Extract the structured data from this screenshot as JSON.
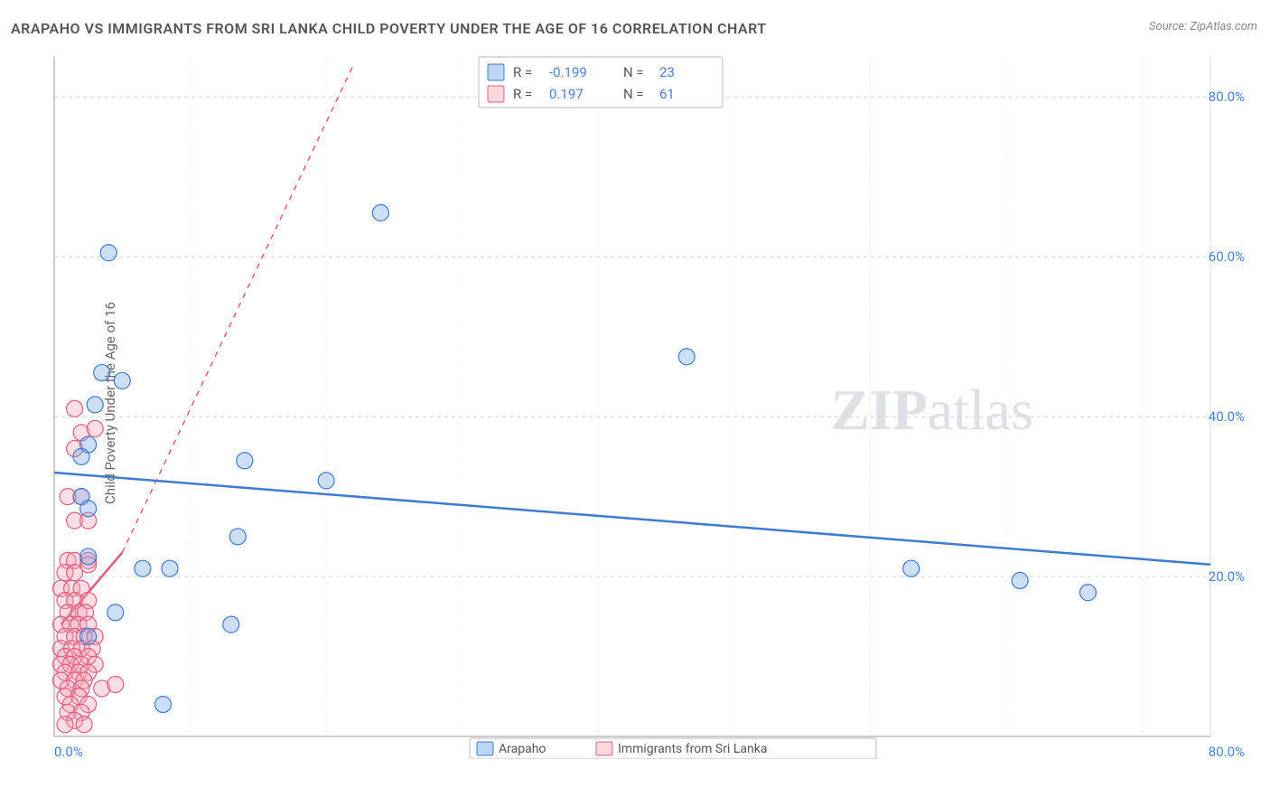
{
  "title": "ARAPAHO VS IMMIGRANTS FROM SRI LANKA CHILD POVERTY UNDER THE AGE OF 16 CORRELATION CHART",
  "source": "Source: ZipAtlas.com",
  "y_axis_label": "Child Poverty Under the Age of 16",
  "watermark_a": "ZIP",
  "watermark_b": "atlas",
  "chart": {
    "type": "scatter",
    "background_color": "#ffffff",
    "grid_color": "#d5d5d5",
    "axis_color": "#bbbbbb",
    "xlim": [
      0,
      85
    ],
    "ylim": [
      0,
      85
    ],
    "y_ticks": [
      20,
      40,
      60,
      80
    ],
    "y_tick_labels": [
      "20.0%",
      "40.0%",
      "60.0%",
      "80.0%"
    ],
    "x_origin_label": "0.0%",
    "x_max_label": "80.0%",
    "marker_radius": 9,
    "label_fontsize_pt": 11,
    "tick_fontsize_pt": 11,
    "tick_color": "#4a7fd6",
    "series_a": {
      "name": "Arapaho",
      "color_fill": "#6ea4e8",
      "color_stroke": "#3f7bcf",
      "R": "-0.199",
      "N": "23",
      "trend": {
        "x1": 0,
        "y1": 33,
        "x2": 85,
        "y2": 21.5
      },
      "points": [
        [
          4,
          60.5
        ],
        [
          24,
          65.5
        ],
        [
          46.5,
          47.5
        ],
        [
          3.5,
          45.5
        ],
        [
          5,
          44.5
        ],
        [
          3,
          41.5
        ],
        [
          2.5,
          36.5
        ],
        [
          2,
          35
        ],
        [
          14,
          34.5
        ],
        [
          20,
          32
        ],
        [
          2,
          30
        ],
        [
          2.5,
          28.5
        ],
        [
          13.5,
          25
        ],
        [
          6.5,
          21
        ],
        [
          8.5,
          21
        ],
        [
          63,
          21
        ],
        [
          71,
          19.5
        ],
        [
          76,
          18
        ],
        [
          4.5,
          15.5
        ],
        [
          13,
          14
        ],
        [
          2.5,
          22.5
        ],
        [
          8,
          4
        ],
        [
          2.5,
          12.5
        ]
      ]
    },
    "series_b": {
      "name": "Immigrants from Sri Lanka",
      "color_fill": "#f5a3b6",
      "color_stroke": "#e45c7d",
      "R": "0.197",
      "N": "61",
      "trend": {
        "x1": 0.5,
        "y1": 14,
        "x2": 5,
        "y2": 23
      },
      "trend_ext": {
        "x1": 5,
        "y1": 23,
        "x2": 22,
        "y2": 84
      },
      "points": [
        [
          1.5,
          41
        ],
        [
          2,
          38
        ],
        [
          3,
          38.5
        ],
        [
          1.5,
          36
        ],
        [
          1,
          30
        ],
        [
          2,
          30
        ],
        [
          1.5,
          27
        ],
        [
          2.5,
          27
        ],
        [
          1,
          22
        ],
        [
          1.5,
          22
        ],
        [
          2.5,
          22
        ],
        [
          0.8,
          20.5
        ],
        [
          1.5,
          20.5
        ],
        [
          2.5,
          21.5
        ],
        [
          0.5,
          18.5
        ],
        [
          1.3,
          18.5
        ],
        [
          2,
          18.5
        ],
        [
          0.8,
          17
        ],
        [
          1.5,
          17
        ],
        [
          2.5,
          17
        ],
        [
          1,
          15.5
        ],
        [
          1.8,
          15.5
        ],
        [
          2.3,
          15.5
        ],
        [
          0.5,
          14
        ],
        [
          1.2,
          14
        ],
        [
          1.8,
          14
        ],
        [
          2.5,
          14
        ],
        [
          0.8,
          12.5
        ],
        [
          1.5,
          12.5
        ],
        [
          2.2,
          12.5
        ],
        [
          3,
          12.5
        ],
        [
          0.5,
          11
        ],
        [
          1.3,
          11
        ],
        [
          2,
          11
        ],
        [
          2.8,
          11
        ],
        [
          0.8,
          10
        ],
        [
          1.5,
          10
        ],
        [
          2.5,
          10
        ],
        [
          0.5,
          9
        ],
        [
          1.2,
          9
        ],
        [
          2,
          9
        ],
        [
          3,
          9
        ],
        [
          0.8,
          8
        ],
        [
          1.8,
          8
        ],
        [
          2.5,
          8
        ],
        [
          0.5,
          7
        ],
        [
          1.5,
          7
        ],
        [
          2.2,
          7
        ],
        [
          1,
          6
        ],
        [
          2,
          6
        ],
        [
          3.5,
          6
        ],
        [
          0.8,
          5
        ],
        [
          1.8,
          5
        ],
        [
          4.5,
          6.5
        ],
        [
          1.2,
          4
        ],
        [
          2.5,
          4
        ],
        [
          1,
          3
        ],
        [
          2,
          3
        ],
        [
          1.5,
          2
        ],
        [
          0.8,
          1.5
        ],
        [
          2.2,
          1.5
        ]
      ]
    }
  },
  "stats_legend": {
    "rows": [
      {
        "R_label": "R =",
        "R_val": "-0.199",
        "N_label": "N =",
        "N_val": "23"
      },
      {
        "R_label": "R =",
        "R_val": "0.197",
        "N_label": "N =",
        "N_val": "61"
      }
    ]
  },
  "series_legend": {
    "items": [
      {
        "label": "Arapaho"
      },
      {
        "label": "Immigrants from Sri Lanka"
      }
    ]
  }
}
